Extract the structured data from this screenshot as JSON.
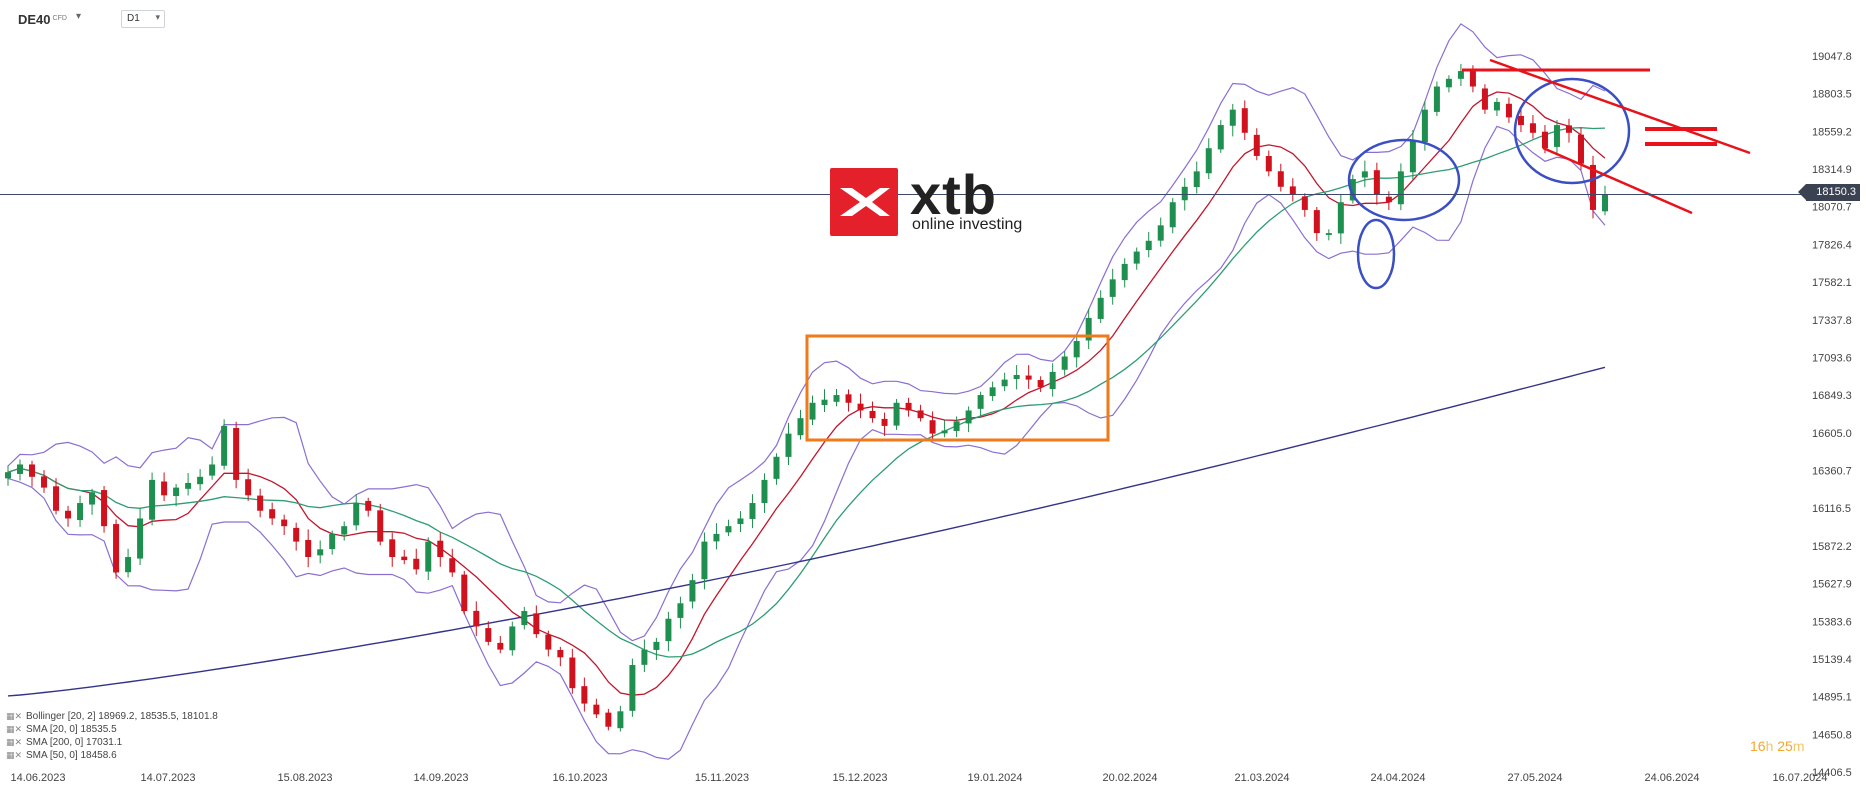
{
  "toolbar": {
    "symbol": "DE40",
    "symbol_type": "CFD",
    "timeframe": "D1"
  },
  "brand": {
    "name": "xtb",
    "tagline": "online investing",
    "color": "#e4202a"
  },
  "current_price": "18150.3",
  "timer": {
    "hours": "16",
    "h_unit": "h",
    "minutes": "25",
    "m_unit": "m"
  },
  "indicators": [
    {
      "label": "Bollinger",
      "params": "[20, 2]",
      "values": "18969.2,  18535.5,  18101.8",
      "color": "#8a6fd1"
    },
    {
      "label": "SMA",
      "params": "[20, 0]",
      "values": "18535.5",
      "color": "#c0172d"
    },
    {
      "label": "SMA",
      "params": "[200, 0]",
      "values": "17031.1",
      "color": "#33338a"
    },
    {
      "label": "SMA",
      "params": "[50, 0]",
      "values": "18458.6",
      "color": "#2e9d73"
    }
  ],
  "colors": {
    "bull": "#1e8f4e",
    "bear": "#d0111e",
    "bollinger": "#8a6fd1",
    "sma20": "#c0172d",
    "sma50": "#2e9d73",
    "sma200": "#33338a",
    "box": "#f07a1a",
    "annotation_red": "#e8121b",
    "annotation_blue": "#3a4fc4"
  },
  "chart_data": {
    "type": "candlestick",
    "yticks": [
      "19047.8",
      "18803.5",
      "18559.2",
      "18314.9",
      "18070.7",
      "17826.4",
      "17582.1",
      "17337.8",
      "17093.6",
      "16849.3",
      "16605.0",
      "16360.7",
      "16116.5",
      "15872.2",
      "15627.9",
      "15383.6",
      "15139.4",
      "14895.1",
      "14650.8",
      "14406.5"
    ],
    "xticks": [
      "14.06.2023",
      "14.07.2023",
      "15.08.2023",
      "14.09.2023",
      "16.10.2023",
      "15.11.2023",
      "15.12.2023",
      "19.01.2024",
      "20.02.2024",
      "21.03.2024",
      "24.04.2024",
      "27.05.2024",
      "24.06.2024",
      "16.07.2024"
    ],
    "ylim": [
      14406.5,
      19047.8
    ],
    "close_series": [
      16350,
      16400,
      16320,
      16250,
      16100,
      16050,
      16150,
      16220,
      16000,
      15700,
      15800,
      16050,
      16300,
      16200,
      16250,
      16280,
      16320,
      16400,
      16650,
      16300,
      16200,
      16100,
      16050,
      16000,
      15900,
      15800,
      15850,
      15950,
      16000,
      16150,
      16100,
      15900,
      15800,
      15780,
      15720,
      15900,
      15800,
      15700,
      15450,
      15350,
      15250,
      15200,
      15350,
      15450,
      15300,
      15200,
      15150,
      14950,
      14850,
      14780,
      14700,
      14800,
      15100,
      15200,
      15250,
      15400,
      15500,
      15650,
      15900,
      15950,
      16000,
      16050,
      16150,
      16300,
      16450,
      16600,
      16700,
      16800,
      16820,
      16850,
      16800,
      16750,
      16700,
      16650,
      16800,
      16750,
      16700,
      16600,
      16620,
      16680,
      16750,
      16850,
      16900,
      16950,
      16980,
      16950,
      16900,
      17000,
      17100,
      17200,
      17350,
      17480,
      17600,
      17700,
      17780,
      17850,
      17950,
      18100,
      18200,
      18300,
      18450,
      18600,
      18700,
      18550,
      18400,
      18300,
      18200,
      18150,
      18050,
      17900,
      17900,
      18100,
      18250,
      18300,
      18150,
      18100,
      18300,
      18500,
      18700,
      18850,
      18900,
      18950,
      18850,
      18700,
      18750,
      18650,
      18600,
      18550,
      18450,
      18600,
      18550,
      18350,
      18050,
      18150
    ]
  }
}
